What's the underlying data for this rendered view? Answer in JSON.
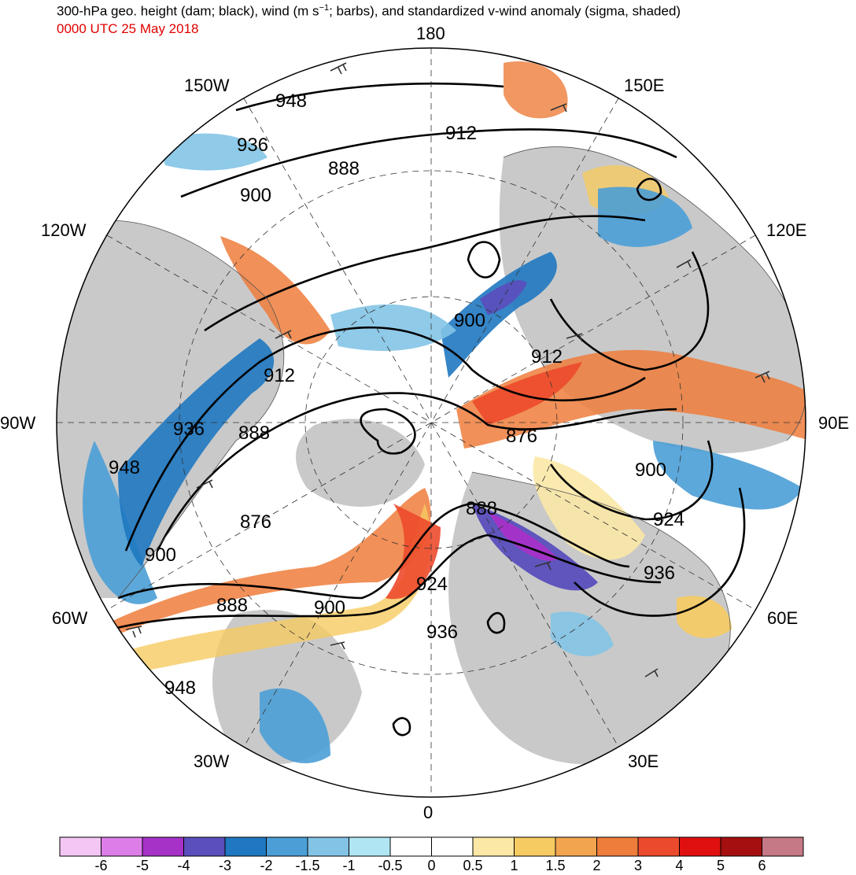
{
  "title": {
    "main_prefix": "300-hPa geo. height (dam; black), wind (m s",
    "main_sup": "−1",
    "main_suffix": "; barbs), and standardized v-wind anomaly (sigma, shaded)",
    "subtitle": "0000 UTC 25 May 2018",
    "subtitle_color": "#e00000"
  },
  "longitude_labels": {
    "top": "180",
    "bottom": "0",
    "left": "90W",
    "right": "90E",
    "upper_left_150": "150W",
    "upper_right_150": "150E",
    "left_120": "120W",
    "right_120": "120E",
    "left_60": "60W",
    "right_60": "60E",
    "lower_left_30": "30W",
    "lower_right_30": "30E"
  },
  "contour_labels": [
    "948",
    "936",
    "888",
    "900",
    "912",
    "912",
    "900",
    "912",
    "936",
    "888",
    "876",
    "948",
    "876",
    "900",
    "888",
    "900",
    "924",
    "936",
    "888",
    "924",
    "936",
    "900"
  ],
  "colorbar": {
    "ticks": [
      "-6",
      "-5",
      "-4",
      "-3",
      "-2",
      "-1.5",
      "-1",
      "-0.5",
      "0",
      "0.5",
      "1",
      "1.5",
      "2",
      "3",
      "4",
      "5",
      "6"
    ],
    "colors": [
      "#f4c6f4",
      "#dd7ee8",
      "#a632c8",
      "#5a4fbd",
      "#1f78c1",
      "#4b9fd6",
      "#83c4e6",
      "#b0e6f4",
      "#ffffff",
      "#ffffff",
      "#fbe8a6",
      "#f6cb62",
      "#f3a44e",
      "#ee7d3b",
      "#ec4a2c",
      "#e01010",
      "#a50f0f",
      "#c57886"
    ]
  },
  "shading_colors": {
    "land": "#c9c9c9",
    "coast": "#555555",
    "contour": "#000000"
  }
}
